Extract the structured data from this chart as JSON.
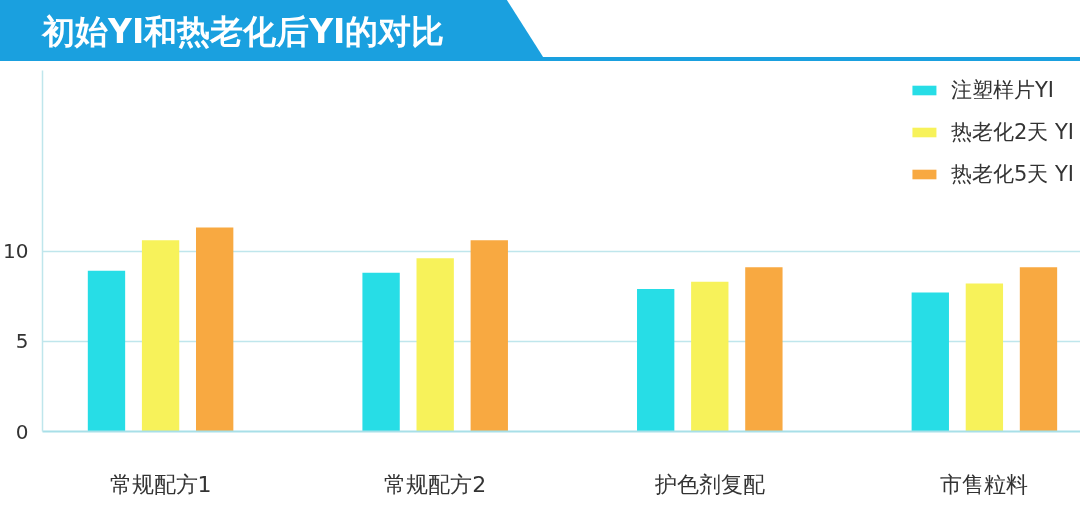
{
  "chart_data": {
    "type": "bar",
    "title": "初始YI和热老化后YI的对比",
    "categories": [
      "常规配方1",
      "常规配方2",
      "护色剂复配",
      "市售粒料"
    ],
    "series": [
      {
        "name": "注塑样片YI",
        "color": "#27dde6",
        "values": [
          8.9,
          8.8,
          7.9,
          7.7
        ]
      },
      {
        "name": "热老化2天 YI",
        "color": "#f7f25a",
        "values": [
          10.6,
          9.6,
          8.3,
          8.2
        ]
      },
      {
        "name": "热老化5天 YI",
        "color": "#f8a941",
        "values": [
          11.3,
          10.6,
          9.1,
          9.1
        ]
      }
    ],
    "ylim": [
      0,
      20
    ],
    "yticks": [
      0,
      5,
      10
    ],
    "grid": "y",
    "legend": "top right"
  }
}
